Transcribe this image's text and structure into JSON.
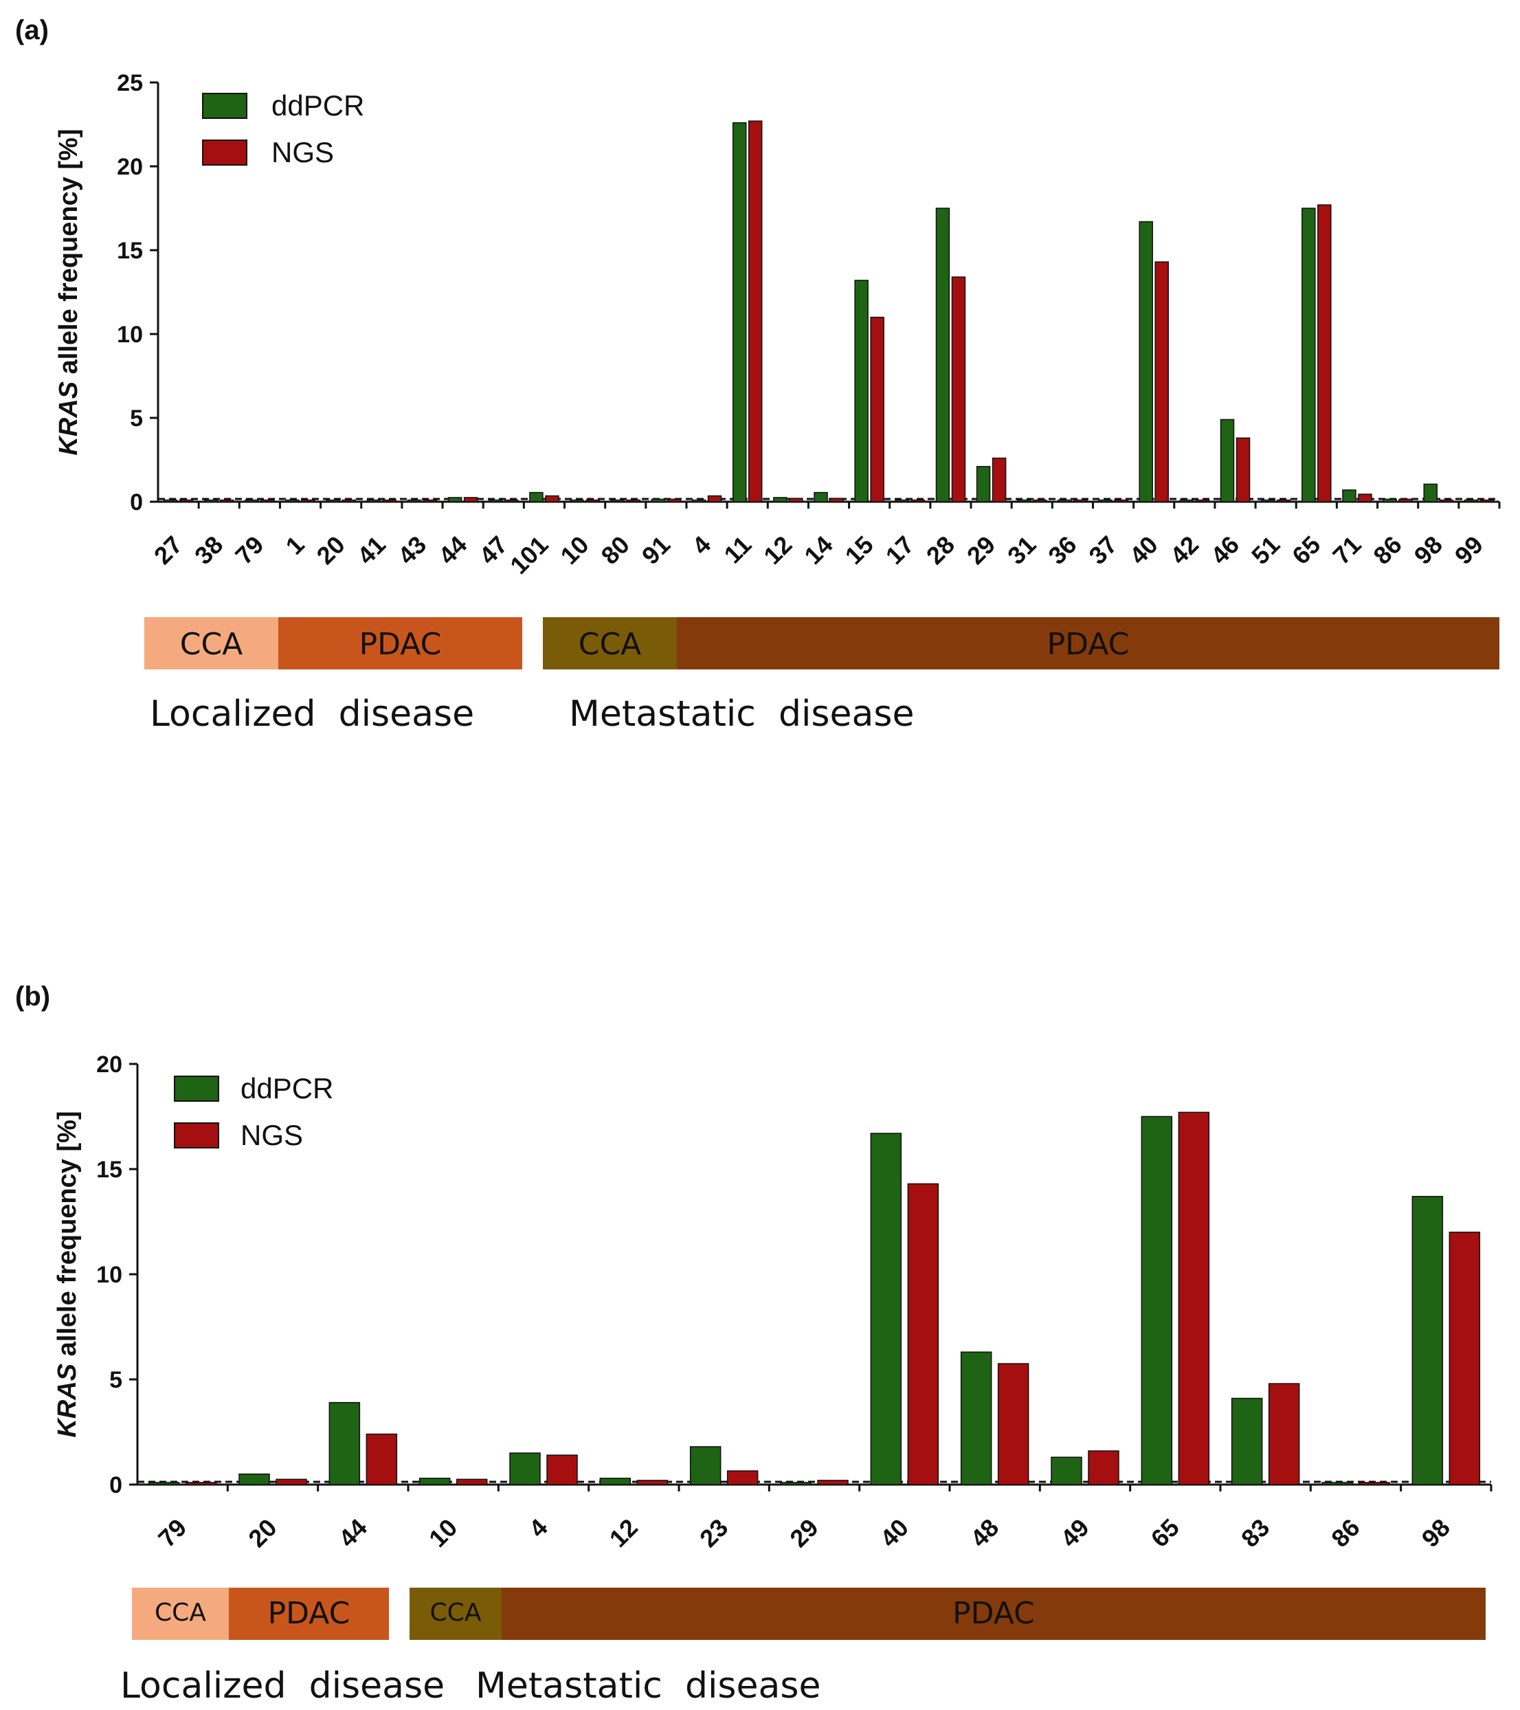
{
  "chart_data": [
    {
      "type": "bar",
      "panel": "(a)",
      "ylabel_italic": "KRAS",
      "ylabel_rest": " allele frequency [%]",
      "ylim": [
        0,
        25
      ],
      "yticks": [
        "0",
        "5",
        "10",
        "15",
        "20",
        "25"
      ],
      "categories": [
        "27",
        "38",
        "79",
        "1",
        "20",
        "41",
        "43",
        "44",
        "47",
        "101",
        "10",
        "80",
        "91",
        "4",
        "11",
        "12",
        "14",
        "15",
        "17",
        "28",
        "29",
        "31",
        "36",
        "37",
        "40",
        "42",
        "46",
        "51",
        "65",
        "71",
        "86",
        "98",
        "99"
      ],
      "series": [
        {
          "name": "ddPCR",
          "color": "#1f6314",
          "values": [
            0.1,
            0.1,
            0.1,
            0.1,
            0.1,
            0.1,
            0.1,
            0.25,
            0.1,
            0.55,
            0.1,
            0.1,
            0.15,
            0.1,
            22.6,
            0.25,
            0.55,
            13.2,
            0.1,
            17.5,
            2.1,
            0.1,
            0.1,
            0.1,
            16.7,
            0.1,
            4.9,
            0.1,
            17.5,
            0.7,
            0.15,
            1.05,
            0.1
          ]
        },
        {
          "name": "NGS",
          "color": "#a50f0f",
          "values": [
            0.1,
            0.1,
            0.1,
            0.1,
            0.1,
            0.1,
            0.1,
            0.25,
            0.1,
            0.35,
            0.1,
            0.1,
            0.15,
            0.35,
            22.7,
            0.2,
            0.2,
            11.0,
            0.1,
            13.4,
            2.6,
            0.1,
            0.1,
            0.1,
            14.3,
            0.1,
            3.8,
            0.1,
            17.7,
            0.45,
            0.15,
            0.1,
            0.1
          ]
        }
      ],
      "bands": [
        {
          "label": "CCA",
          "color": "#f4aa7e"
        },
        {
          "label": "PDAC",
          "color": "#c8561c"
        },
        {
          "label": "CCA",
          "color": "#7a5b08"
        },
        {
          "label": "PDAC",
          "color": "#853a0b"
        }
      ],
      "disease_labels": [
        "Localized  disease",
        "Metastatic  disease"
      ]
    },
    {
      "type": "bar",
      "panel": "(b)",
      "ylabel_italic": "KRAS",
      "ylabel_rest": " allele frequency [%]",
      "ylim": [
        0,
        20
      ],
      "yticks": [
        "0",
        "5",
        "10",
        "15",
        "20"
      ],
      "categories": [
        "79",
        "20",
        "44",
        "10",
        "4",
        "12",
        "23",
        "29",
        "40",
        "48",
        "49",
        "65",
        "83",
        "86",
        "98"
      ],
      "series": [
        {
          "name": "ddPCR",
          "color": "#1f6314",
          "values": [
            0.1,
            0.5,
            3.9,
            0.3,
            1.5,
            0.3,
            1.8,
            0.1,
            16.7,
            6.3,
            1.3,
            17.5,
            4.1,
            0.1,
            13.7
          ]
        },
        {
          "name": "NGS",
          "color": "#a50f0f",
          "values": [
            0.1,
            0.25,
            2.4,
            0.25,
            1.4,
            0.2,
            0.65,
            0.2,
            14.3,
            5.75,
            1.6,
            17.7,
            4.8,
            0.1,
            12.0
          ]
        }
      ],
      "bands": [
        {
          "label": "CCA",
          "color": "#f4aa7e"
        },
        {
          "label": "PDAC",
          "color": "#c8561c"
        },
        {
          "label": "CCA",
          "color": "#7a5b08"
        },
        {
          "label": "PDAC",
          "color": "#853a0b"
        }
      ],
      "disease_labels": [
        "Localized  disease",
        "Metastatic  disease"
      ]
    }
  ]
}
